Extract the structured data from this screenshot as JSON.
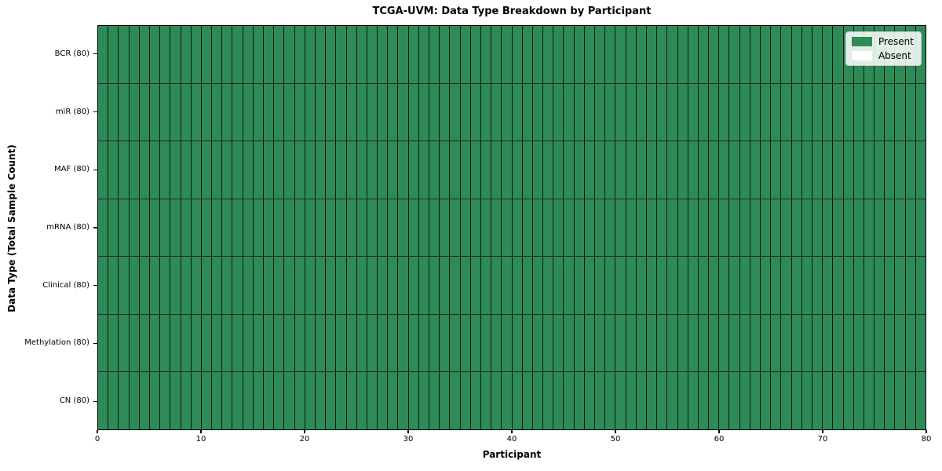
{
  "chart_data": {
    "type": "heatmap",
    "title": "TCGA-UVM: Data Type Breakdown by Participant",
    "xlabel": "Participant",
    "ylabel": "Data Type (Total Sample Count)",
    "x_range": [
      0,
      80
    ],
    "x_ticks": [
      0,
      10,
      20,
      30,
      40,
      50,
      60,
      70,
      80
    ],
    "n_participants": 80,
    "rows": [
      {
        "label": "BCR (80)",
        "present_count": 80,
        "absent_count": 0
      },
      {
        "label": "miR (80)",
        "present_count": 80,
        "absent_count": 0
      },
      {
        "label": "MAF (80)",
        "present_count": 80,
        "absent_count": 0
      },
      {
        "label": "mRNA (80)",
        "present_count": 80,
        "absent_count": 0
      },
      {
        "label": "Clinical (80)",
        "present_count": 80,
        "absent_count": 0
      },
      {
        "label": "Methylation (80)",
        "present_count": 80,
        "absent_count": 0
      },
      {
        "label": "CN (80)",
        "present_count": 80,
        "absent_count": 0
      }
    ],
    "legend": {
      "position": "upper right",
      "entries": [
        {
          "label": "Present",
          "color": "#2e8b57"
        },
        {
          "label": "Absent",
          "color": "#ffffff"
        }
      ]
    },
    "colors": {
      "present": "#2e8b57",
      "absent": "#ffffff",
      "cell_edge": "#1c1c1c",
      "spine": "#000000"
    },
    "grid": false
  }
}
